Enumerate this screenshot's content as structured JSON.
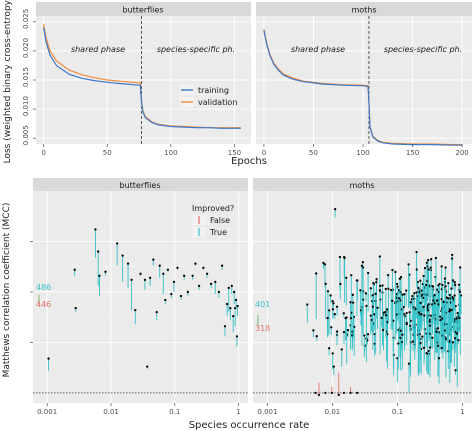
{
  "colors": {
    "panel_bg": "#ebebeb",
    "grid_major": "#ffffff",
    "strip_bg": "#d9d9d9",
    "training": "#3b78c8",
    "validation": "#f08a3c",
    "false": "#e8716a",
    "true": "#33c2c8",
    "point": "#000000",
    "text": "#222222",
    "axis_text": "#4d4d4d"
  },
  "chart_data": [
    {
      "type": "line",
      "ylabel": "Loss (weighted binary cross-entropy)",
      "xlabel": "Epochs",
      "ylim": [
        0.004,
        0.026
      ],
      "yticks": [
        0.005,
        0.01,
        0.015,
        0.02,
        0.025
      ],
      "legend": {
        "placement": "bottom-right of butterflies panel",
        "entries": [
          "training",
          "validation"
        ]
      },
      "panels": [
        {
          "title": "butterflies",
          "xlim": [
            -6,
            163
          ],
          "xticks": [
            0,
            50,
            100,
            150
          ],
          "phase_boundary": 77,
          "phase_labels": [
            "shared phase",
            "species-specific ph."
          ],
          "series": [
            {
              "name": "training",
              "x": [
                0,
                2,
                5,
                10,
                20,
                30,
                40,
                50,
                60,
                70,
                76,
                77,
                78,
                80,
                85,
                90,
                100,
                110,
                120,
                130,
                140,
                150,
                155
              ],
              "y": [
                0.024,
                0.0215,
                0.0193,
                0.0175,
                0.016,
                0.0153,
                0.0149,
                0.0146,
                0.0144,
                0.0142,
                0.0141,
                0.011,
                0.0095,
                0.0085,
                0.0077,
                0.0073,
                0.007,
                0.0069,
                0.0068,
                0.0068,
                0.0067,
                0.0067,
                0.0067
              ]
            },
            {
              "name": "validation",
              "x": [
                0,
                2,
                5,
                10,
                20,
                30,
                40,
                50,
                60,
                70,
                76,
                77,
                78,
                80,
                85,
                90,
                100,
                110,
                120,
                130,
                140,
                150,
                155
              ],
              "y": [
                0.0246,
                0.0222,
                0.02,
                0.0183,
                0.0167,
                0.0159,
                0.0154,
                0.015,
                0.0148,
                0.0146,
                0.0145,
                0.0112,
                0.0097,
                0.0087,
                0.0078,
                0.0074,
                0.0071,
                0.007,
                0.0069,
                0.0068,
                0.0068,
                0.0068,
                0.0068
              ]
            }
          ]
        },
        {
          "title": "moths",
          "xlim": [
            -8,
            210
          ],
          "xticks": [
            0,
            50,
            100,
            150,
            200
          ],
          "phase_boundary": 106,
          "phase_labels": [
            "shared phase",
            "species-specific ph."
          ],
          "series": [
            {
              "name": "training",
              "x": [
                0,
                3,
                6,
                10,
                15,
                20,
                30,
                40,
                60,
                80,
                100,
                105,
                106,
                107,
                110,
                115,
                120,
                130,
                150,
                170,
                190,
                200
              ],
              "y": [
                0.0235,
                0.021,
                0.0192,
                0.0177,
                0.0166,
                0.0158,
                0.0151,
                0.0147,
                0.0143,
                0.0141,
                0.014,
                0.0139,
                0.011,
                0.007,
                0.0052,
                0.0045,
                0.0042,
                0.004,
                0.0039,
                0.0039,
                0.0038,
                0.0038
              ]
            },
            {
              "name": "validation",
              "x": [
                0,
                3,
                6,
                10,
                15,
                20,
                30,
                40,
                60,
                80,
                100,
                105,
                106,
                107,
                110,
                115,
                120,
                130,
                150,
                170,
                190,
                200
              ],
              "y": [
                0.0237,
                0.0212,
                0.0194,
                0.0179,
                0.0168,
                0.016,
                0.0153,
                0.0148,
                0.0144,
                0.0142,
                0.0141,
                0.014,
                0.0111,
                0.0071,
                0.0053,
                0.0046,
                0.0043,
                0.0041,
                0.004,
                0.004,
                0.0039,
                0.0039
              ]
            }
          ]
        }
      ]
    },
    {
      "type": "scatter",
      "ylabel": "Matthews correlation coefficient (MCC)",
      "xlabel": "Species occurrence rate",
      "x_scale": "log",
      "xlim": [
        0.0006,
        1.4
      ],
      "xticks": [
        0.001,
        0.01,
        0.1,
        1
      ],
      "xticklabels": [
        "0.001",
        "0.01",
        "0.1",
        "1"
      ],
      "ylim": [
        -0.05,
        1.0
      ],
      "zero_line": 0,
      "legend": {
        "title": "Improved?",
        "placement": "top-right of butterflies panel",
        "entries": [
          "False",
          "True"
        ]
      },
      "panels": [
        {
          "title": "butterflies",
          "annotations": [
            {
              "text": "486",
              "class": "true",
              "y": 0.5
            },
            {
              "text": "446",
              "class": "false",
              "y": 0.44
            }
          ],
          "segments": [
            [
              0.00105,
              0.11,
              0.17
            ],
            [
              0.0027,
              0.58,
              0.61
            ],
            [
              0.0028,
              0.4,
              0.42
            ],
            [
              0.0057,
              0.67,
              0.81
            ],
            [
              0.0063,
              0.53,
              0.7
            ],
            [
              0.0066,
              0.48,
              0.58
            ],
            [
              0.0082,
              0.58,
              0.6
            ],
            [
              0.0125,
              0.63,
              0.74
            ],
            [
              0.0152,
              0.55,
              0.68
            ],
            [
              0.0185,
              0.52,
              0.64
            ],
            [
              0.021,
              0.41,
              0.56
            ],
            [
              0.024,
              0.34,
              0.41
            ],
            [
              0.029,
              0.58,
              0.59
            ],
            [
              0.034,
              0.51,
              0.56
            ],
            [
              0.037,
              0.12,
              0.13
            ],
            [
              0.041,
              0.53,
              0.57
            ],
            [
              0.046,
              0.63,
              0.66
            ],
            [
              0.052,
              0.36,
              0.4
            ],
            [
              0.058,
              0.57,
              0.63
            ],
            [
              0.066,
              0.49,
              0.59
            ],
            [
              0.071,
              0.44,
              0.46
            ],
            [
              0.078,
              0.6,
              0.61
            ],
            [
              0.088,
              0.47,
              0.49
            ],
            [
              0.097,
              0.5,
              0.55
            ],
            [
              0.11,
              0.61,
              0.62
            ],
            [
              0.125,
              0.46,
              0.48
            ],
            [
              0.14,
              0.56,
              0.58
            ],
            [
              0.16,
              0.48,
              0.5
            ],
            [
              0.19,
              0.56,
              0.58
            ],
            [
              0.21,
              0.63,
              0.64
            ],
            [
              0.24,
              0.51,
              0.53
            ],
            [
              0.28,
              0.61,
              0.62
            ],
            [
              0.32,
              0.57,
              0.59
            ],
            [
              0.37,
              0.52,
              0.54
            ],
            [
              0.43,
              0.49,
              0.55
            ],
            [
              0.49,
              0.47,
              0.5
            ],
            [
              0.55,
              0.61,
              0.63
            ],
            [
              0.61,
              0.28,
              0.33
            ],
            [
              0.66,
              0.38,
              0.44
            ],
            [
              0.7,
              0.4,
              0.52
            ],
            [
              0.74,
              0.36,
              0.42
            ],
            [
              0.78,
              0.49,
              0.53
            ],
            [
              0.82,
              0.3,
              0.38
            ],
            [
              0.85,
              0.44,
              0.5
            ],
            [
              0.88,
              0.33,
              0.42
            ],
            [
              0.91,
              0.42,
              0.46
            ],
            [
              0.94,
              0.23,
              0.28
            ],
            [
              0.96,
              0.38,
              0.43
            ]
          ]
        },
        {
          "title": "moths",
          "annotations": [
            {
              "text": "401",
              "class": "true",
              "y": 0.4
            },
            {
              "text": "318",
              "class": "false",
              "y": 0.32
            }
          ],
          "random_segments": {
            "count": 360,
            "x_range": [
              0.004,
              1.0
            ],
            "y_mean": 0.36,
            "y_spread": 0.36
          },
          "false_segments": [
            [
              0.0055,
              0.0,
              0.0
            ],
            [
              0.0062,
              0.05,
              -0.01
            ],
            [
              0.0078,
              0.0,
              0.0
            ],
            [
              0.0098,
              0.03,
              0.0
            ],
            [
              0.0125,
              0.1,
              -0.01
            ],
            [
              0.015,
              0.0,
              0.0
            ],
            [
              0.019,
              0.03,
              0.0
            ],
            [
              0.024,
              0.0,
              0.0
            ]
          ],
          "highlighted_points": [
            [
              0.011,
              0.91
            ],
            [
              0.0105,
              0.13
            ]
          ]
        }
      ]
    }
  ]
}
